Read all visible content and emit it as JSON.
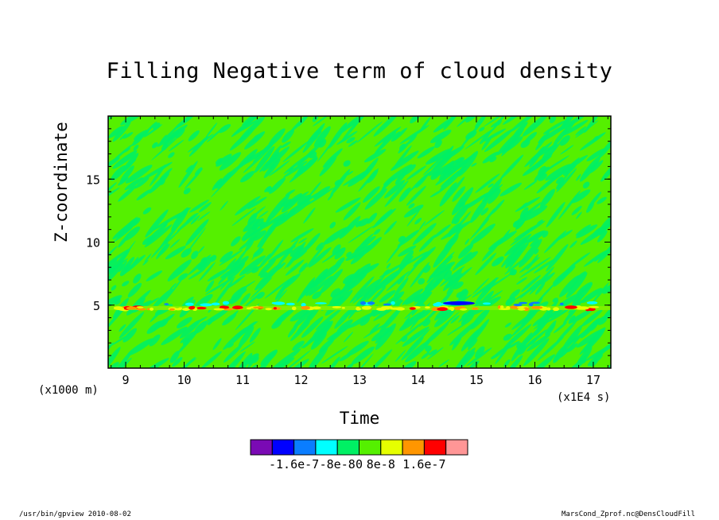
{
  "chart_data": {
    "type": "heatmap",
    "title": "Filling Negative term of cloud density",
    "xlabel": "Time",
    "ylabel": "Z-coordinate",
    "x_unit": "(x1E4 s)",
    "y_unit": "(x1000 m)",
    "xlim": [
      8.7,
      17.3
    ],
    "ylim": [
      0,
      20
    ],
    "x_ticks": [
      9,
      10,
      11,
      12,
      13,
      14,
      15,
      16,
      17
    ],
    "y_ticks": [
      5,
      10,
      15
    ],
    "colorbar": {
      "colors": [
        "#7a0ab4",
        "#0000ff",
        "#0a7dff",
        "#00ffff",
        "#00f064",
        "#55f000",
        "#e6ff00",
        "#ff9600",
        "#ff0000",
        "#ff9696"
      ],
      "tick_labels": [
        "-1.6e-7",
        "-8e-8",
        "0",
        "8e-8",
        "1.6e-7"
      ]
    },
    "background_level_color": "#55f000",
    "secondary_level_color": "#00f064",
    "features": [
      {
        "z": 5.1,
        "description_color": "#0a7dff"
      },
      {
        "z": 4.8,
        "description_color": "#e6ff00"
      },
      {
        "z": 4.7,
        "description_color": "#ff0000"
      }
    ]
  },
  "footer": {
    "left": "/usr/bin/gpview  2010-08-02",
    "right": "MarsCond_Zprof.nc@DensCloudFill"
  }
}
